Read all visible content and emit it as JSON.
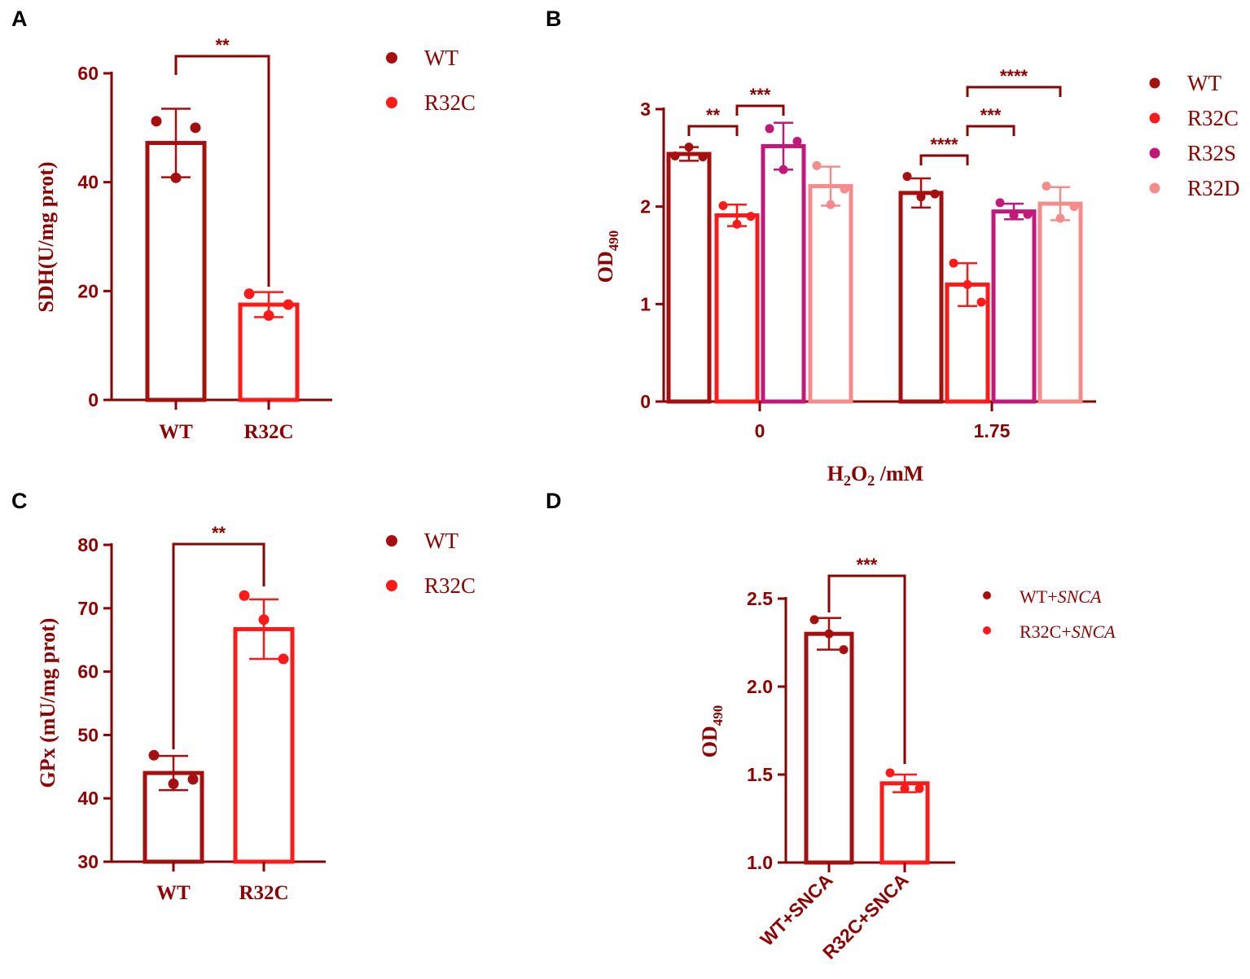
{
  "figure": {
    "text_color": "#8B0000",
    "colors": {
      "WT": "#A50F0F",
      "R32C": "#FF1A1A",
      "R32S": "#C2187A",
      "R32D": "#F58C8C"
    }
  },
  "chart_data": [
    {
      "panel": "A",
      "type": "bar",
      "title": "",
      "ylabel": "SDH(U/mg prot)",
      "xlabel": "",
      "ylim": [
        0,
        60
      ],
      "yticks": [
        0,
        20,
        40,
        60
      ],
      "categories": [
        "WT",
        "R32C"
      ],
      "values": [
        47.2,
        17.5
      ],
      "errors": [
        6.3,
        2.3
      ],
      "points": [
        [
          51.2,
          40.8,
          50.0
        ],
        [
          19.5,
          15.5,
          17.5
        ]
      ],
      "colors": [
        "#A50F0F",
        "#FF1A1A"
      ],
      "legend": [
        "WT",
        "R32C"
      ],
      "significance": [
        {
          "from": 0,
          "to": 1,
          "label": "**"
        }
      ]
    },
    {
      "panel": "B",
      "type": "bar",
      "title": "",
      "ylabel": "OD490",
      "ylabel_main": "OD",
      "ylabel_sub": "490",
      "xlabel": "H2O2 /mM",
      "xlabel_parts": [
        "H",
        "2",
        "O",
        "2",
        " /mM"
      ],
      "ylim": [
        0,
        3
      ],
      "yticks": [
        0,
        1,
        2,
        3
      ],
      "categories": [
        "0",
        "1.75"
      ],
      "series": [
        {
          "name": "WT",
          "color": "#A50F0F",
          "values": [
            2.54,
            2.14
          ],
          "errors": [
            0.07,
            0.15
          ],
          "points": [
            [
              2.52,
              2.61,
              2.51
            ],
            [
              2.31,
              2.1,
              2.13
            ]
          ]
        },
        {
          "name": "R32C",
          "color": "#FF1A1A",
          "values": [
            1.91,
            1.2
          ],
          "errors": [
            0.11,
            0.22
          ],
          "points": [
            [
              2.01,
              1.82,
              1.9
            ],
            [
              1.42,
              1.2,
              1.02
            ]
          ]
        },
        {
          "name": "R32S",
          "color": "#C2187A",
          "values": [
            2.62,
            1.95
          ],
          "errors": [
            0.24,
            0.08
          ],
          "points": [
            [
              2.8,
              2.38,
              2.67
            ],
            [
              2.04,
              1.91,
              1.92
            ]
          ]
        },
        {
          "name": "R32D",
          "color": "#F58C8C",
          "values": [
            2.21,
            2.03
          ],
          "errors": [
            0.2,
            0.17
          ],
          "points": [
            [
              2.42,
              2.02,
              2.18
            ],
            [
              2.21,
              1.88,
              2.0
            ]
          ]
        }
      ],
      "significance": [
        {
          "group": 0,
          "from": 0,
          "to": 1,
          "label": "**"
        },
        {
          "group": 0,
          "from": 1,
          "to": 2,
          "label": "***"
        },
        {
          "group": 1,
          "from": 0,
          "to": 1,
          "label": "****"
        },
        {
          "group": 1,
          "from": 1,
          "to": 2,
          "label": "***"
        },
        {
          "group": 1,
          "from": 1,
          "to": 3,
          "label": "****"
        }
      ]
    },
    {
      "panel": "C",
      "type": "bar",
      "title": "",
      "ylabel": "GPx (mU/mg prot)",
      "xlabel": "",
      "ylim": [
        30,
        80
      ],
      "yticks": [
        30,
        40,
        50,
        60,
        70,
        80
      ],
      "categories": [
        "WT",
        "R32C"
      ],
      "values": [
        44.0,
        66.7
      ],
      "errors": [
        2.7,
        4.7
      ],
      "points": [
        [
          46.8,
          42.3,
          43.0
        ],
        [
          72.0,
          68.2,
          62.0
        ]
      ],
      "colors": [
        "#A50F0F",
        "#FF1A1A"
      ],
      "legend": [
        "WT",
        "R32C"
      ],
      "significance": [
        {
          "from": 0,
          "to": 1,
          "label": "**"
        }
      ]
    },
    {
      "panel": "D",
      "type": "bar",
      "title": "",
      "ylabel": "OD490",
      "ylabel_main": "OD",
      "ylabel_sub": "490",
      "xlabel": "",
      "ylim": [
        1.0,
        2.5
      ],
      "yticks": [
        "1.0",
        "1.5",
        "2.0",
        "2.5"
      ],
      "categories": [
        "WT+SNCA",
        "R32C+SNCA"
      ],
      "values": [
        2.3,
        1.45
      ],
      "errors": [
        0.09,
        0.05
      ],
      "points": [
        [
          2.38,
          2.3,
          2.21
        ],
        [
          1.51,
          1.42,
          1.42
        ]
      ],
      "colors": [
        "#A50F0F",
        "#FF1A1A"
      ],
      "legend": [
        {
          "prefix": "WT+",
          "italic": "SNCA"
        },
        {
          "prefix": "R32C+",
          "italic": "SNCA"
        }
      ],
      "significance": [
        {
          "from": 0,
          "to": 1,
          "label": "***"
        }
      ]
    }
  ]
}
